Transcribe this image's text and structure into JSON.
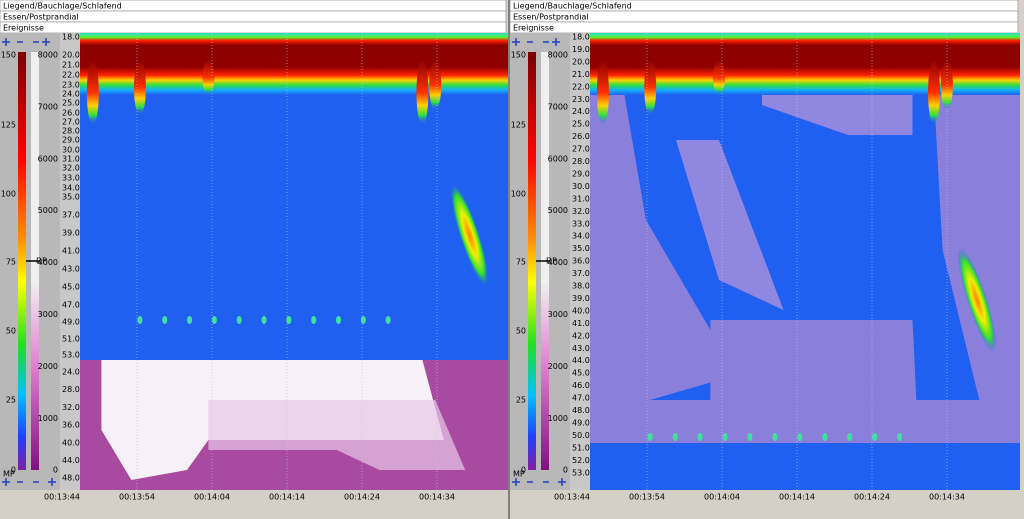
{
  "panels": [
    {
      "header": [
        "Liegend/Bauchlage/Schlafend",
        "Essen/Postprandial",
        "Ereignisse"
      ],
      "pressure_scale": [
        "150",
        "125",
        "100",
        "75",
        "50",
        "25",
        "0"
      ],
      "color_scale": [
        "8000",
        "7000",
        "6000",
        "5000",
        "4000",
        "3000",
        "2000",
        "1000",
        "0"
      ],
      "markers": [
        "MP",
        "DP"
      ],
      "depth_labels": [
        "18.0",
        "20.0",
        "21.0",
        "22.0",
        "23.0",
        "24.0",
        "25.0",
        "26.0",
        "27.0",
        "28.0",
        "29.0",
        "30.0",
        "31.0",
        "32.0",
        "33.0",
        "34.0",
        "35.0",
        "37.0",
        "39.0",
        "41.0",
        "43.0",
        "45.0",
        "47.0",
        "49.0",
        "51.0",
        "53.0"
      ],
      "lower_labels": [
        "24.0",
        "28.0",
        "32.0",
        "36.0",
        "40.0",
        "44.0",
        "48.0"
      ],
      "time_labels": [
        "00:13:44",
        "00:13:54",
        "00:14:04",
        "00:14:14",
        "00:14:24",
        "00:14:34"
      ]
    },
    {
      "header": [
        "Liegend/Bauchlage/Schlafend",
        "Essen/Postprandial",
        "Ereignisse"
      ],
      "pressure_scale": [
        "150",
        "125",
        "100",
        "75",
        "50",
        "25",
        "0"
      ],
      "color_scale": [
        "8000",
        "7000",
        "6000",
        "5000",
        "4000",
        "3000",
        "2000",
        "1000",
        "0"
      ],
      "markers": [
        "MP",
        "DP"
      ],
      "depth_labels": [
        "18.0",
        "19.0",
        "20.0",
        "21.0",
        "22.0",
        "23.0",
        "24.0",
        "25.0",
        "26.0",
        "27.0",
        "28.0",
        "29.0",
        "30.0",
        "31.0",
        "32.0",
        "33.0",
        "34.0",
        "35.0",
        "36.0",
        "37.0",
        "38.0",
        "39.0",
        "40.0",
        "41.0",
        "42.0",
        "43.0",
        "44.0",
        "45.0",
        "46.0",
        "47.0",
        "48.0",
        "49.0",
        "50.0",
        "51.0",
        "52.0",
        "53.0"
      ],
      "lower_labels": [],
      "time_labels": [
        "00:13:44",
        "00:13:54",
        "00:14:04",
        "00:14:14",
        "00:14:24",
        "00:14:34"
      ]
    }
  ]
}
